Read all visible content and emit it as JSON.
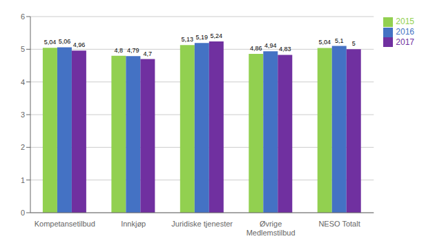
{
  "chart_data": {
    "type": "bar",
    "categories": [
      "Kompetansetilbud",
      "Innkjøp",
      "Juridiske tjenester",
      "Øvrige\nMedlemstilbud",
      "NESO Totalt"
    ],
    "series": [
      {
        "name": "2015",
        "color": "#92d050",
        "values": [
          5.045,
          4.8,
          5.13,
          4.86,
          5.04
        ],
        "value_labels": [
          "5,04",
          "4,8",
          "5,13",
          "4,86",
          "5,04"
        ]
      },
      {
        "name": "2016",
        "color": "#4472c4",
        "values": [
          5.06,
          4.79,
          5.19,
          4.94,
          5.1
        ],
        "value_labels": [
          "5,06",
          "4,79",
          "5,19",
          "4,94",
          "5,1"
        ]
      },
      {
        "name": "2017",
        "color": "#7030a0",
        "values": [
          4.96,
          4.7,
          5.24,
          4.83,
          5.0
        ],
        "value_labels": [
          "4,96",
          "4,7",
          "5,24",
          "4,83",
          "5"
        ]
      }
    ],
    "ylim": [
      0,
      6
    ],
    "yticks": [
      0,
      1,
      2,
      3,
      4,
      5,
      6
    ],
    "grid": true,
    "legend": "upper right",
    "data_labels": true
  }
}
